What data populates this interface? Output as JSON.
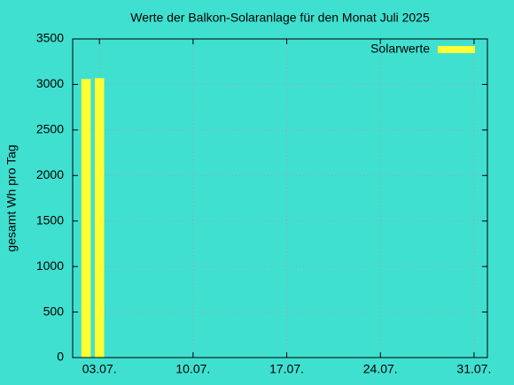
{
  "chart_data": {
    "type": "bar",
    "title": "Werte der Balkon-Solaranlage für den Monat Juli 2025",
    "ylabel": "gesamt Wh pro Tag",
    "x": [
      2,
      3
    ],
    "series": [
      {
        "name": "Solarwerte",
        "color": "#ffff33",
        "values": [
          3060,
          3070
        ]
      }
    ],
    "xlim": [
      1,
      32
    ],
    "xticks": [
      {
        "value": 3,
        "label": "03.07."
      },
      {
        "value": 10,
        "label": "10.07."
      },
      {
        "value": 17,
        "label": "17.07."
      },
      {
        "value": 24,
        "label": "24.07."
      },
      {
        "value": 31,
        "label": "31.07."
      }
    ],
    "ylim": [
      0,
      3500
    ],
    "yticks": [
      0,
      500,
      1000,
      1500,
      2000,
      2500,
      3000,
      3500
    ],
    "grid": true,
    "legend": "top-right",
    "background": "#40e0d0"
  }
}
